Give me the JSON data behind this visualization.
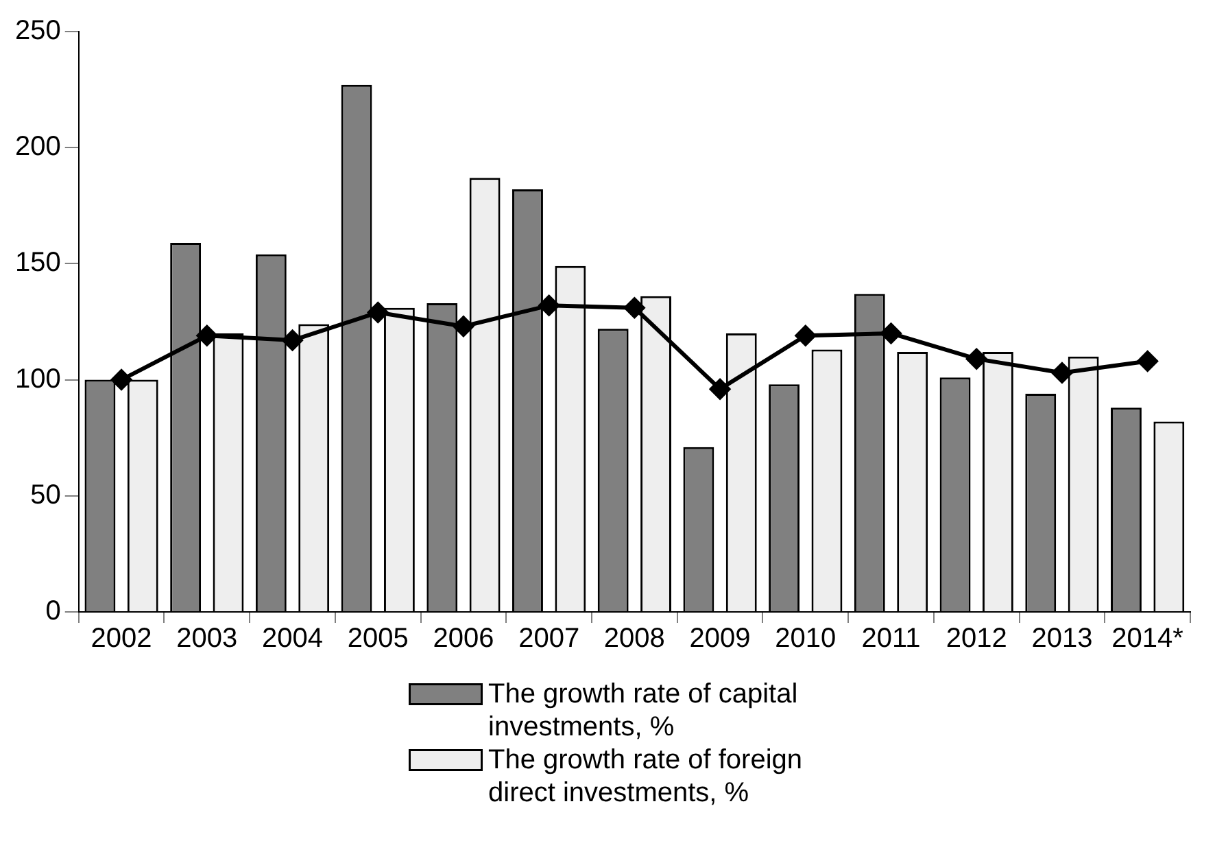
{
  "chart_data": {
    "type": "bar",
    "categories": [
      "2002",
      "2003",
      "2004",
      "2005",
      "2006",
      "2007",
      "2008",
      "2009",
      "2010",
      "2011",
      "2012",
      "2013",
      "2014*"
    ],
    "series": [
      {
        "name": "The growth rate of capital investments, %",
        "color": "#808080",
        "values": [
          100,
          159,
          154,
          227,
          133,
          182,
          122,
          71,
          98,
          137,
          101,
          94,
          88
        ]
      },
      {
        "name": "The growth rate of foreign direct investments, %",
        "color": "#eeeeee",
        "values": [
          100,
          120,
          124,
          131,
          187,
          149,
          136,
          120,
          113,
          112,
          112,
          110,
          82
        ]
      },
      {
        "type": "line",
        "color": "#000000",
        "marker": "diamond",
        "values": [
          100,
          119,
          117,
          129,
          123,
          132,
          131,
          96,
          119,
          120,
          109,
          103,
          108
        ]
      }
    ],
    "ylim": [
      0,
      250
    ],
    "yticks": [
      0,
      50,
      100,
      150,
      200,
      250
    ],
    "grid": false,
    "legend": "bottom"
  }
}
